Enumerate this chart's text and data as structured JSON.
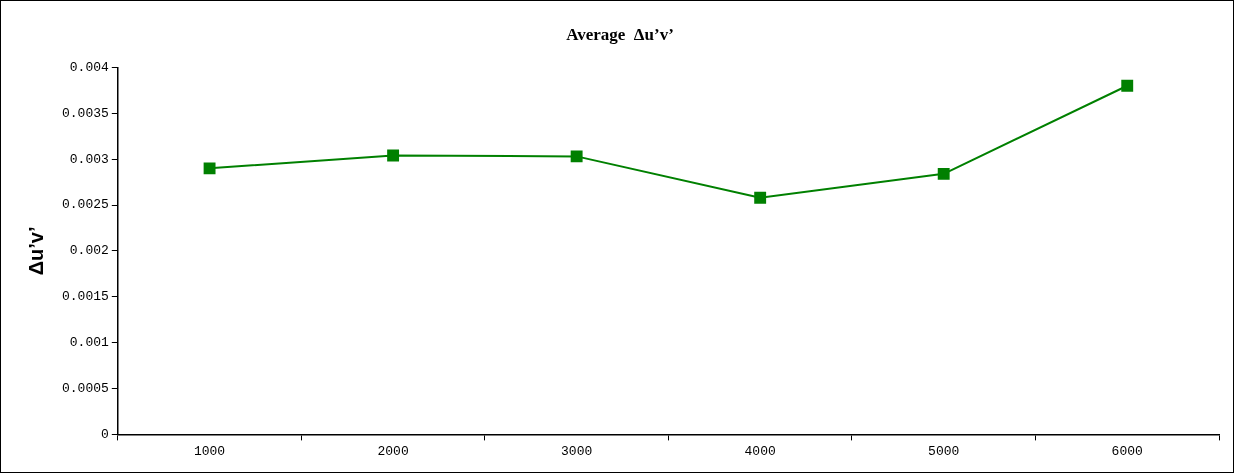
{
  "chart_data": {
    "type": "line",
    "title": "Average  Δu’v’",
    "ylabel": "Δu’v’",
    "categories": [
      "1000",
      "2000",
      "3000",
      "4000",
      "5000",
      "6000"
    ],
    "series": [
      {
        "color": "#008000",
        "values": [
          0.0029,
          0.00304,
          0.00303,
          0.00258,
          0.00284,
          0.0038
        ]
      }
    ],
    "ylim": [
      0,
      0.004
    ],
    "yticks": [
      0,
      0.0005,
      0.001,
      0.0015,
      0.002,
      0.0025,
      0.003,
      0.0035,
      0.004
    ],
    "marker": "square",
    "line_style": "solid",
    "grid": false,
    "legend": false
  }
}
